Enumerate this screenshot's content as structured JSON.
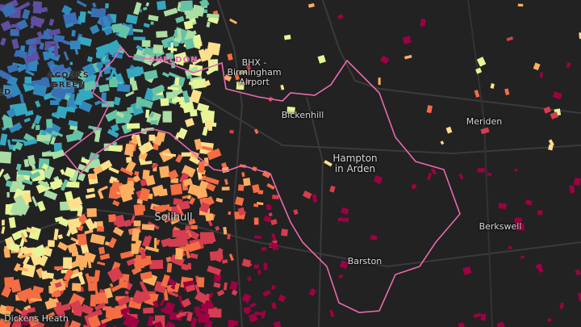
{
  "map": {
    "labels": [
      "SHELDON",
      "ACOCKS GREEN",
      "ELD",
      "BHX - Birmingham Airport",
      "Bickenhill",
      "Hampton in Arden",
      "Solihull",
      "Meriden",
      "Berkswell",
      "Barston",
      "Dickens Heath"
    ]
  }
}
